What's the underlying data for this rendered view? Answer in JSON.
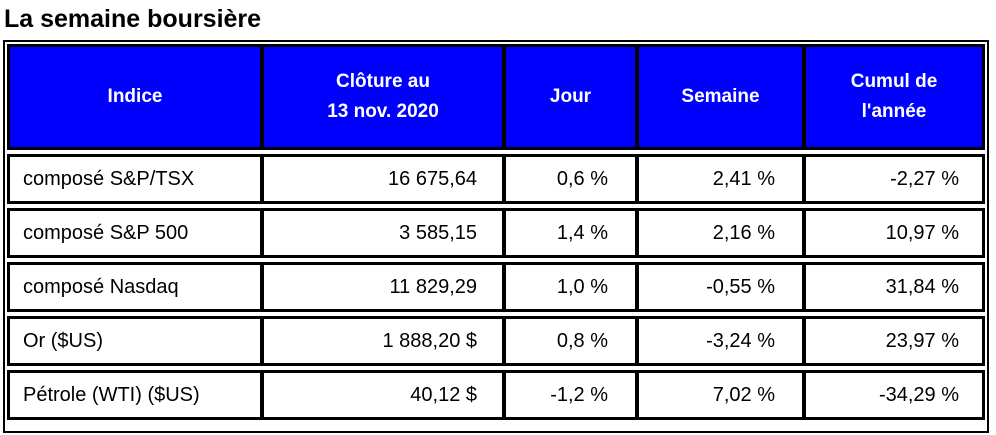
{
  "title": "La semaine boursière",
  "table": {
    "headers": [
      {
        "line1": "Indice",
        "line2": ""
      },
      {
        "line1": "Clôture au",
        "line2": "13 nov. 2020"
      },
      {
        "line1": "Jour",
        "line2": ""
      },
      {
        "line1": "Semaine",
        "line2": ""
      },
      {
        "line1": "Cumul de",
        "line2": "l'année"
      }
    ],
    "rows": [
      [
        "composé S&P/TSX",
        "16 675,64",
        "0,6 %",
        "2,41 %",
        "-2,27 %"
      ],
      [
        "composé S&P 500",
        "3 585,15",
        "1,4 %",
        "2,16 %",
        "10,97 %"
      ],
      [
        "composé Nasdaq",
        "11 829,29",
        "1,0 %",
        "-0,55 %",
        "31,84 %"
      ],
      [
        "Or ($US)",
        "1 888,20 $",
        "0,8 %",
        "-3,24 %",
        "23,97 %"
      ],
      [
        "Pétrole (WTI) ($US)",
        "40,12 $",
        "-1,2 %",
        "7,02 %",
        "-34,29 %"
      ]
    ]
  },
  "colors": {
    "header_background": "#0000ff",
    "header_text": "#ffffff",
    "border": "#000000"
  }
}
